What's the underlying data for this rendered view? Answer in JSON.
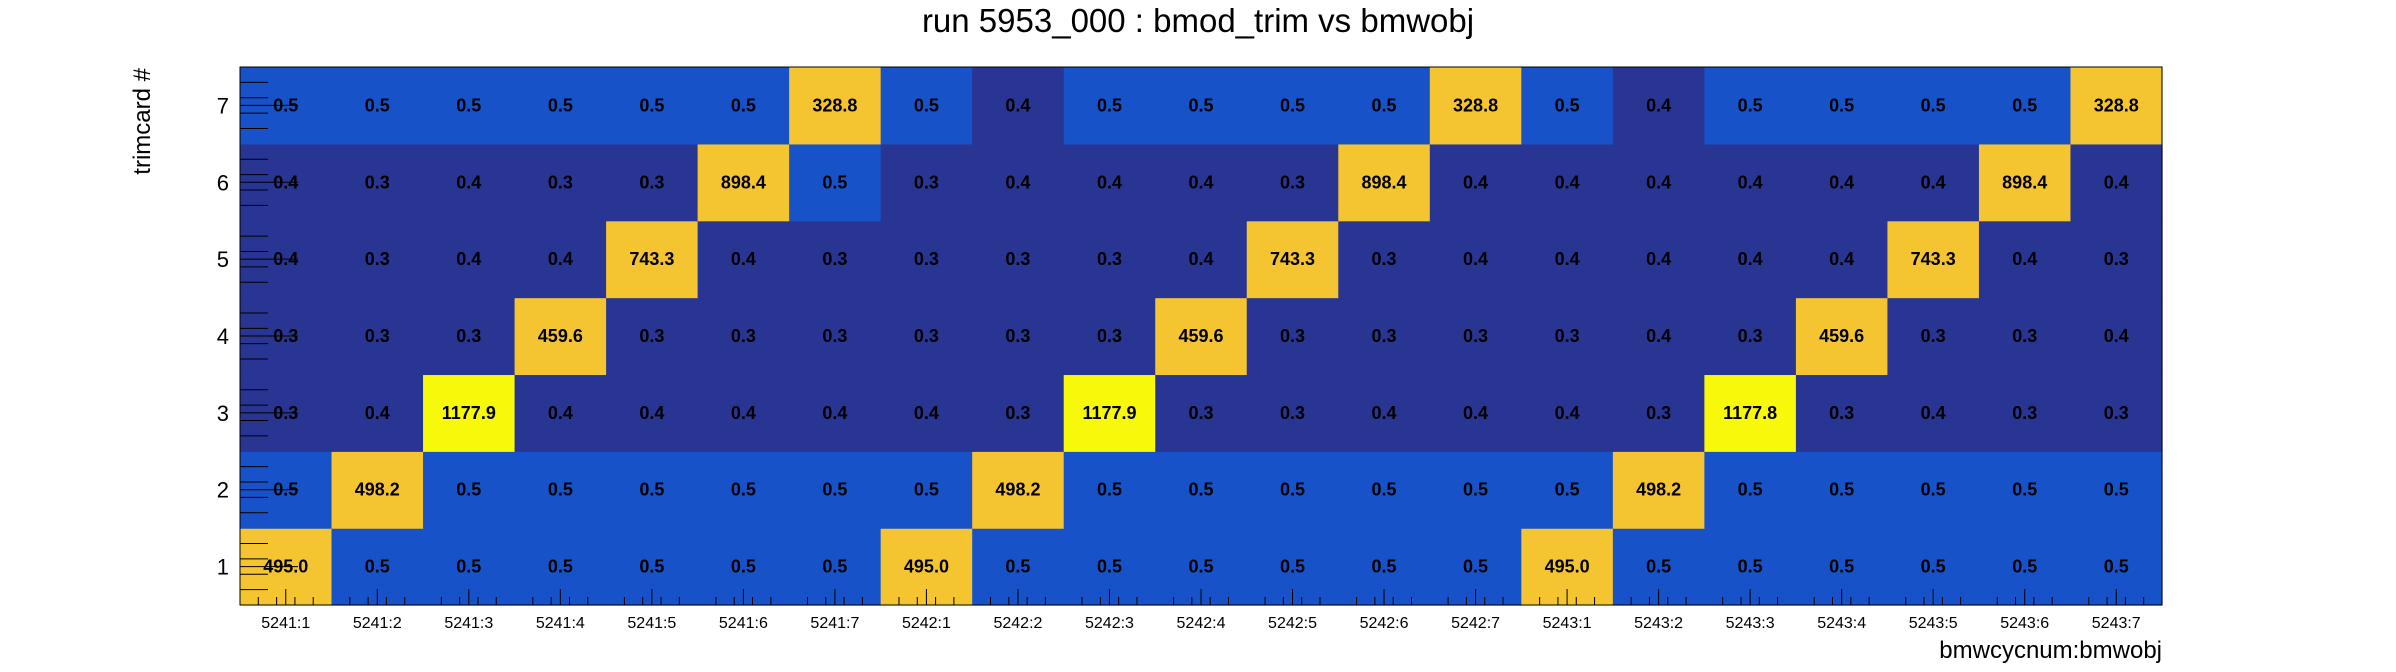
{
  "chart_data": {
    "type": "heatmap",
    "title": "run 5953_000 : bmod_trim vs bmwobj",
    "xlabel": "bmwcycnum:bmwobj",
    "ylabel": "trimcard #",
    "x_categories": [
      "5241:1",
      "5241:2",
      "5241:3",
      "5241:4",
      "5241:5",
      "5241:6",
      "5241:7",
      "5242:1",
      "5242:2",
      "5242:3",
      "5242:4",
      "5242:5",
      "5242:6",
      "5242:7",
      "5243:1",
      "5243:2",
      "5243:3",
      "5243:4",
      "5243:5",
      "5243:6",
      "5243:7"
    ],
    "y_categories": [
      "1",
      "2",
      "3",
      "4",
      "5",
      "6",
      "7"
    ],
    "values": [
      [
        "495.0",
        "0.5",
        "0.5",
        "0.5",
        "0.5",
        "0.5",
        "0.5",
        "495.0",
        "0.5",
        "0.5",
        "0.5",
        "0.5",
        "0.5",
        "0.5",
        "495.0",
        "0.5",
        "0.5",
        "0.5",
        "0.5",
        "0.5",
        "0.5"
      ],
      [
        "0.5",
        "498.2",
        "0.5",
        "0.5",
        "0.5",
        "0.5",
        "0.5",
        "0.5",
        "498.2",
        "0.5",
        "0.5",
        "0.5",
        "0.5",
        "0.5",
        "0.5",
        "498.2",
        "0.5",
        "0.5",
        "0.5",
        "0.5",
        "0.5"
      ],
      [
        "0.3",
        "0.4",
        "1177.9",
        "0.4",
        "0.4",
        "0.4",
        "0.4",
        "0.4",
        "0.3",
        "1177.9",
        "0.3",
        "0.3",
        "0.4",
        "0.4",
        "0.4",
        "0.3",
        "1177.8",
        "0.3",
        "0.4",
        "0.3",
        "0.3"
      ],
      [
        "0.3",
        "0.3",
        "0.3",
        "459.6",
        "0.3",
        "0.3",
        "0.3",
        "0.3",
        "0.3",
        "0.3",
        "459.6",
        "0.3",
        "0.3",
        "0.3",
        "0.3",
        "0.4",
        "0.3",
        "459.6",
        "0.3",
        "0.3",
        "0.4"
      ],
      [
        "0.4",
        "0.3",
        "0.4",
        "0.4",
        "743.3",
        "0.4",
        "0.3",
        "0.3",
        "0.3",
        "0.3",
        "0.4",
        "743.3",
        "0.3",
        "0.4",
        "0.4",
        "0.4",
        "0.4",
        "0.4",
        "743.3",
        "0.4",
        "0.3"
      ],
      [
        "0.4",
        "0.3",
        "0.4",
        "0.3",
        "0.3",
        "898.4",
        "0.5",
        "0.3",
        "0.4",
        "0.4",
        "0.4",
        "0.3",
        "898.4",
        "0.4",
        "0.4",
        "0.4",
        "0.4",
        "0.4",
        "0.4",
        "898.4",
        "0.4"
      ],
      [
        "0.5",
        "0.5",
        "0.5",
        "0.5",
        "0.5",
        "0.5",
        "328.8",
        "0.5",
        "0.4",
        "0.5",
        "0.5",
        "0.5",
        "0.5",
        "328.8",
        "0.5",
        "0.4",
        "0.5",
        "0.5",
        "0.5",
        "0.5",
        "328.8"
      ]
    ],
    "colors": {
      "low_dark": "#283593",
      "low_mid": "#1852c8",
      "high_gold": "#f5c431",
      "peak_yellow": "#f8f80b"
    },
    "grid": false,
    "legend": "none"
  }
}
